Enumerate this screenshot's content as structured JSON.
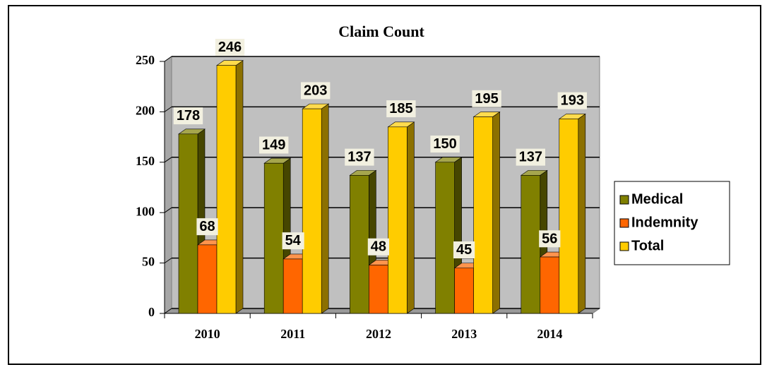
{
  "chart_data": {
    "type": "bar3d",
    "title": "Claim Count",
    "categories": [
      "2010",
      "2011",
      "2012",
      "2013",
      "2014"
    ],
    "series": [
      {
        "name": "Medical",
        "color": "#808000",
        "values": [
          178,
          149,
          137,
          150,
          137
        ]
      },
      {
        "name": "Indemnity",
        "color": "#ff6600",
        "values": [
          68,
          54,
          48,
          45,
          56
        ]
      },
      {
        "name": "Total",
        "color": "#ffcc00",
        "values": [
          246,
          203,
          185,
          195,
          193
        ]
      }
    ],
    "ylim": [
      0,
      250
    ],
    "yticks": [
      0,
      50,
      100,
      150,
      200,
      250
    ],
    "grid": true,
    "legend": "right"
  }
}
